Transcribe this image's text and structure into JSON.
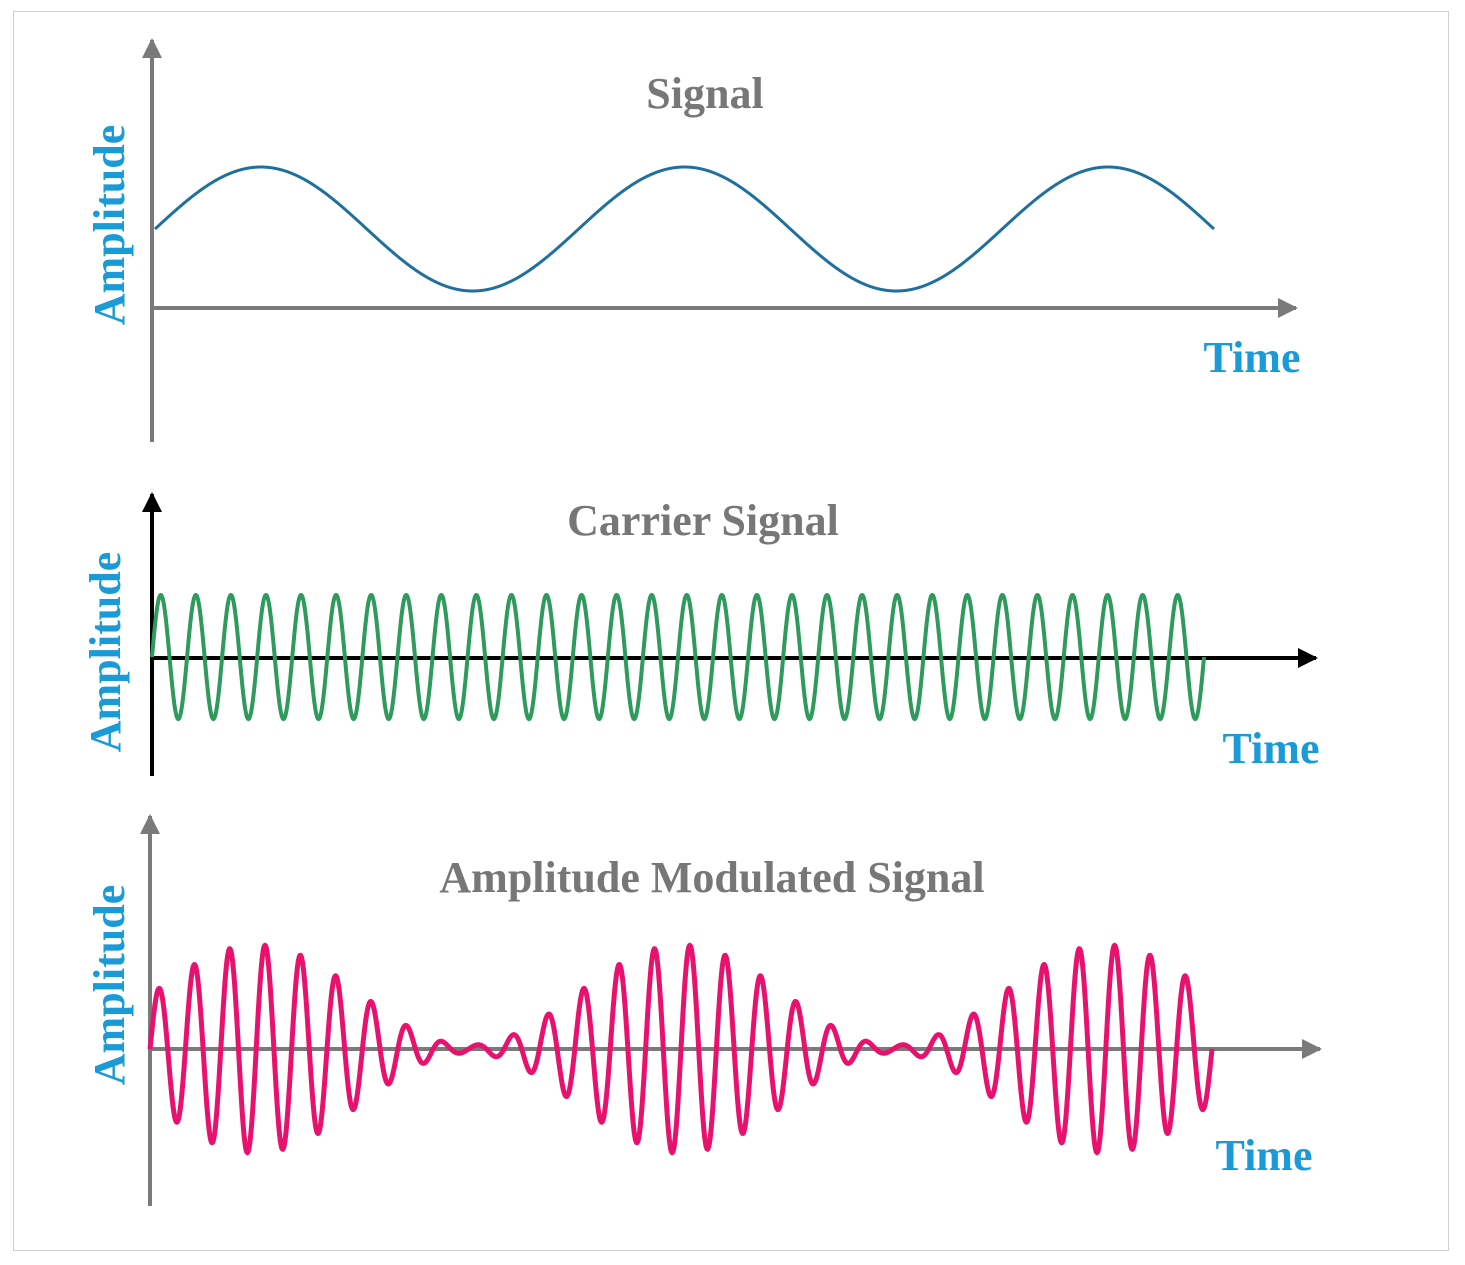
{
  "panels": [
    {
      "title": "Signal",
      "y_label": "Amplitude",
      "x_label": "Time",
      "wave_color": "#1f6f9f",
      "axis_color": "#7a7a7a",
      "wave": {
        "type": "sine",
        "cycles": 2.5,
        "amplitude": 1.0
      }
    },
    {
      "title": "Carrier Signal",
      "y_label": "Amplitude",
      "x_label": "Time",
      "wave_color": "#2e9a5c",
      "axis_color": "#000000",
      "wave": {
        "type": "sine",
        "cycles": 30,
        "amplitude": 1.0
      }
    },
    {
      "title": "Amplitude Modulated Signal",
      "y_label": "Amplitude",
      "x_label": "Time",
      "wave_color": "#e8126e",
      "axis_color": "#7a7a7a",
      "wave": {
        "type": "am",
        "carrier_cycles": 30,
        "message_cycles": 2.5,
        "modulation_depth": 0.93
      }
    }
  ]
}
